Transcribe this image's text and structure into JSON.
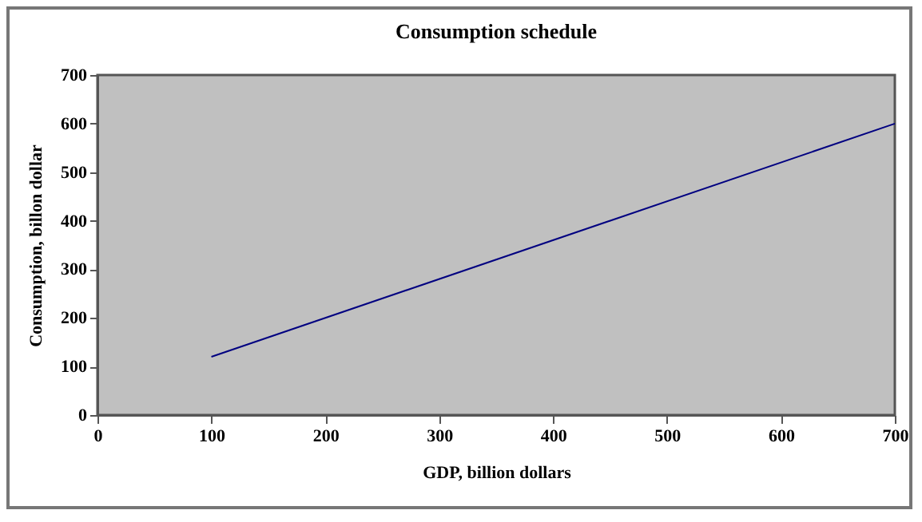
{
  "chart_data": {
    "type": "line",
    "title": "Consumption schedule",
    "xlabel": "GDP, billion dollars",
    "ylabel": "Consumption, billon dollar",
    "x": [
      100,
      700
    ],
    "series": [
      {
        "color": "#000080",
        "values": [
          120,
          600
        ]
      }
    ],
    "xlim": [
      0,
      700
    ],
    "xticks": [
      0,
      100,
      200,
      300,
      400,
      500,
      600,
      700
    ],
    "ylim": [
      0,
      700
    ],
    "yticks": [
      0,
      100,
      200,
      300,
      400,
      500,
      600,
      700
    ],
    "grid": false,
    "legend": false
  }
}
